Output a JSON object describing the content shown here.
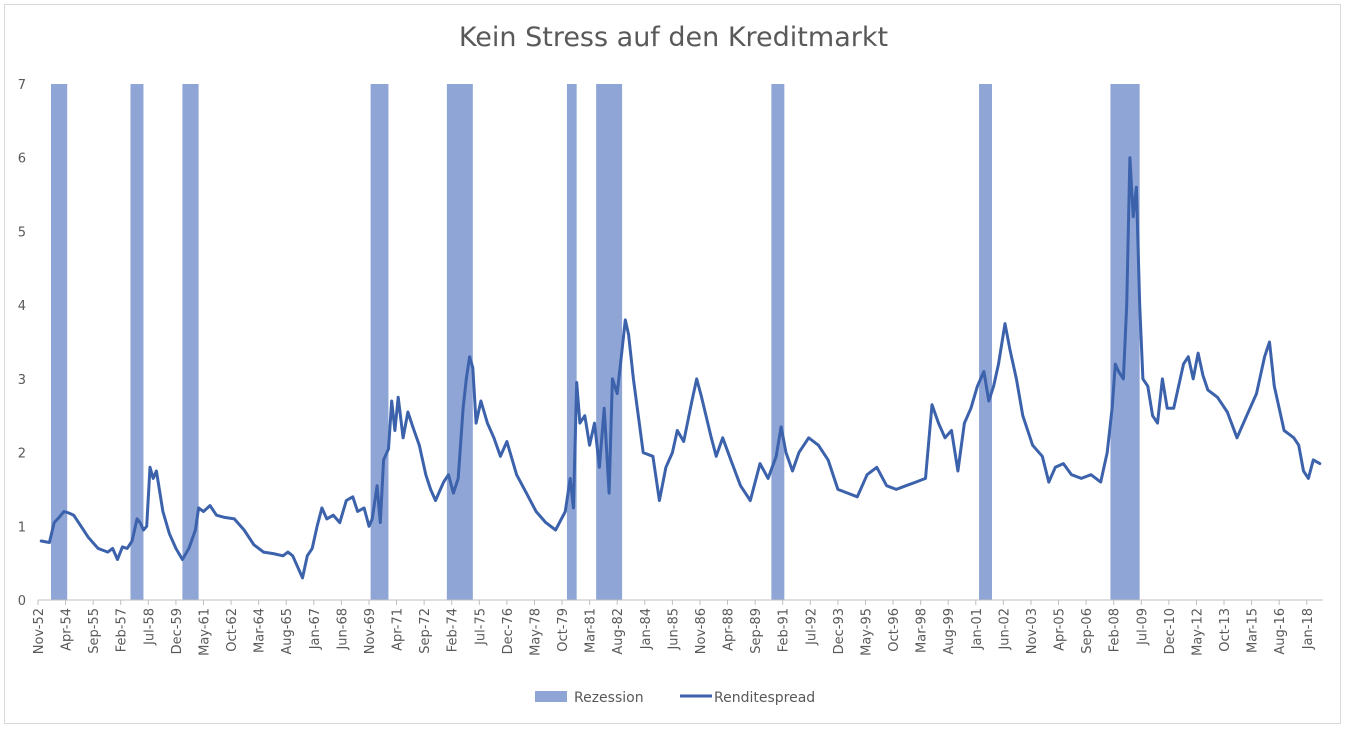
{
  "chart_data": {
    "type": "line",
    "title": "Kein Stress auf den Kreditmarkt",
    "xlabel": "",
    "ylabel": "",
    "ylim": [
      0,
      7
    ],
    "yticks": [
      0,
      1,
      2,
      3,
      4,
      5,
      6,
      7
    ],
    "xlim": [
      "Nov-52",
      "Nov-18"
    ],
    "xticks": [
      "Nov-52",
      "Apr-54",
      "Sep-55",
      "Feb-57",
      "Jul-58",
      "Dec-59",
      "May-61",
      "Oct-62",
      "Mar-64",
      "Aug-65",
      "Jan-67",
      "Jun-68",
      "Nov-69",
      "Apr-71",
      "Sep-72",
      "Feb-74",
      "Jul-75",
      "Dec-76",
      "May-78",
      "Oct-79",
      "Mar-81",
      "Aug-82",
      "Jan-84",
      "Jun-85",
      "Nov-86",
      "Apr-88",
      "Sep-89",
      "Feb-91",
      "Jul-92",
      "Dec-93",
      "May-95",
      "Oct-96",
      "Mar-98",
      "Aug-99",
      "Jan-01",
      "Jun-02",
      "Nov-03",
      "Apr-05",
      "Sep-06",
      "Feb-08",
      "Jul-09",
      "Dec-10",
      "May-12",
      "Oct-13",
      "Mar-15",
      "Aug-16",
      "Jan-18"
    ],
    "grid": false,
    "legend_position": "bottom",
    "colors": {
      "recession": "#8fa5d6",
      "spread": "#3c62ac",
      "axis": "#bfbfbf",
      "text": "#595959"
    },
    "series": [
      {
        "name": "Rezession",
        "kind": "shaded-periods",
        "periods": [
          [
            "Jul-53",
            "May-54"
          ],
          [
            "Aug-57",
            "Apr-58"
          ],
          [
            "Apr-60",
            "Feb-61"
          ],
          [
            "Dec-69",
            "Nov-70"
          ],
          [
            "Nov-73",
            "Mar-75"
          ],
          [
            "Jan-80",
            "Jul-80"
          ],
          [
            "Jul-81",
            "Nov-82"
          ],
          [
            "Jul-90",
            "Mar-91"
          ],
          [
            "Mar-01",
            "Nov-01"
          ],
          [
            "Dec-07",
            "Jun-09"
          ]
        ]
      },
      {
        "name": "Renditespread",
        "kind": "line",
        "points": [
          [
            "Jan-53",
            0.8
          ],
          [
            "Jun-53",
            0.78
          ],
          [
            "Sep-53",
            1.05
          ],
          [
            "Dec-53",
            1.12
          ],
          [
            "Mar-54",
            1.2
          ],
          [
            "Jun-54",
            1.18
          ],
          [
            "Sep-54",
            1.15
          ],
          [
            "Dec-54",
            1.05
          ],
          [
            "Jun-55",
            0.85
          ],
          [
            "Dec-55",
            0.7
          ],
          [
            "Jun-56",
            0.65
          ],
          [
            "Sep-56",
            0.7
          ],
          [
            "Dec-56",
            0.55
          ],
          [
            "Mar-57",
            0.72
          ],
          [
            "Jun-57",
            0.7
          ],
          [
            "Sep-57",
            0.8
          ],
          [
            "Dec-57",
            1.1
          ],
          [
            "Feb-58",
            1.05
          ],
          [
            "Apr-58",
            0.95
          ],
          [
            "Jun-58",
            1.0
          ],
          [
            "Aug-58",
            1.8
          ],
          [
            "Oct-58",
            1.65
          ],
          [
            "Dec-58",
            1.75
          ],
          [
            "Apr-59",
            1.2
          ],
          [
            "Aug-59",
            0.9
          ],
          [
            "Dec-59",
            0.7
          ],
          [
            "Apr-60",
            0.55
          ],
          [
            "Aug-60",
            0.7
          ],
          [
            "Dec-60",
            0.95
          ],
          [
            "Feb-61",
            1.25
          ],
          [
            "May-61",
            1.2
          ],
          [
            "Sep-61",
            1.28
          ],
          [
            "Jan-62",
            1.15
          ],
          [
            "Jun-62",
            1.12
          ],
          [
            "Dec-62",
            1.1
          ],
          [
            "Jun-63",
            0.95
          ],
          [
            "Dec-63",
            0.75
          ],
          [
            "Jun-64",
            0.65
          ],
          [
            "Dec-64",
            0.63
          ],
          [
            "Jun-65",
            0.6
          ],
          [
            "Sep-65",
            0.65
          ],
          [
            "Dec-65",
            0.6
          ],
          [
            "Mar-66",
            0.45
          ],
          [
            "Jun-66",
            0.3
          ],
          [
            "Sep-66",
            0.6
          ],
          [
            "Dec-66",
            0.7
          ],
          [
            "Mar-67",
            1.0
          ],
          [
            "Jun-67",
            1.25
          ],
          [
            "Sep-67",
            1.1
          ],
          [
            "Jan-68",
            1.15
          ],
          [
            "May-68",
            1.05
          ],
          [
            "Sep-68",
            1.35
          ],
          [
            "Jan-69",
            1.4
          ],
          [
            "Apr-69",
            1.2
          ],
          [
            "Aug-69",
            1.25
          ],
          [
            "Nov-69",
            1.0
          ],
          [
            "Jan-70",
            1.1
          ],
          [
            "Apr-70",
            1.55
          ],
          [
            "Jun-70",
            1.05
          ],
          [
            "Aug-70",
            1.9
          ],
          [
            "Nov-70",
            2.05
          ],
          [
            "Jan-71",
            2.7
          ],
          [
            "Mar-71",
            2.3
          ],
          [
            "May-71",
            2.75
          ],
          [
            "Aug-71",
            2.2
          ],
          [
            "Nov-71",
            2.55
          ],
          [
            "Feb-72",
            2.35
          ],
          [
            "Jun-72",
            2.1
          ],
          [
            "Oct-72",
            1.7
          ],
          [
            "Jan-73",
            1.5
          ],
          [
            "Apr-73",
            1.35
          ],
          [
            "Sep-73",
            1.6
          ],
          [
            "Dec-73",
            1.7
          ],
          [
            "Mar-74",
            1.45
          ],
          [
            "Jun-74",
            1.65
          ],
          [
            "Sep-74",
            2.6
          ],
          [
            "Nov-74",
            3.0
          ],
          [
            "Jan-75",
            3.3
          ],
          [
            "Mar-75",
            3.15
          ],
          [
            "May-75",
            2.4
          ],
          [
            "Aug-75",
            2.7
          ],
          [
            "Dec-75",
            2.4
          ],
          [
            "Apr-76",
            2.2
          ],
          [
            "Aug-76",
            1.95
          ],
          [
            "Dec-76",
            2.15
          ],
          [
            "Jun-77",
            1.7
          ],
          [
            "Dec-77",
            1.45
          ],
          [
            "Jun-78",
            1.2
          ],
          [
            "Dec-78",
            1.05
          ],
          [
            "Jun-79",
            0.95
          ],
          [
            "Dec-79",
            1.2
          ],
          [
            "Mar-80",
            1.65
          ],
          [
            "May-80",
            1.25
          ],
          [
            "Jul-80",
            2.95
          ],
          [
            "Sep-80",
            2.4
          ],
          [
            "Dec-80",
            2.5
          ],
          [
            "Mar-81",
            2.1
          ],
          [
            "Jun-81",
            2.4
          ],
          [
            "Sep-81",
            1.8
          ],
          [
            "Dec-81",
            2.6
          ],
          [
            "Mar-82",
            1.45
          ],
          [
            "May-82",
            3.0
          ],
          [
            "Aug-82",
            2.8
          ],
          [
            "Oct-82",
            3.2
          ],
          [
            "Jan-83",
            3.8
          ],
          [
            "Mar-83",
            3.6
          ],
          [
            "Jun-83",
            3.0
          ],
          [
            "Dec-83",
            2.0
          ],
          [
            "Jun-84",
            1.95
          ],
          [
            "Oct-84",
            1.35
          ],
          [
            "Feb-85",
            1.8
          ],
          [
            "Jun-85",
            2.0
          ],
          [
            "Sep-85",
            2.3
          ],
          [
            "Jan-86",
            2.15
          ],
          [
            "Jun-86",
            2.7
          ],
          [
            "Sep-86",
            3.0
          ],
          [
            "Dec-86",
            2.75
          ],
          [
            "Jun-87",
            2.2
          ],
          [
            "Sep-87",
            1.95
          ],
          [
            "Jan-88",
            2.2
          ],
          [
            "Jun-88",
            1.9
          ],
          [
            "Dec-88",
            1.55
          ],
          [
            "Jun-89",
            1.35
          ],
          [
            "Dec-89",
            1.85
          ],
          [
            "May-90",
            1.65
          ],
          [
            "Oct-90",
            1.95
          ],
          [
            "Jan-91",
            2.35
          ],
          [
            "Apr-91",
            2.0
          ],
          [
            "Aug-91",
            1.75
          ],
          [
            "Dec-91",
            2.0
          ],
          [
            "Jun-92",
            2.2
          ],
          [
            "Dec-92",
            2.1
          ],
          [
            "Jun-93",
            1.9
          ],
          [
            "Dec-93",
            1.5
          ],
          [
            "Jun-94",
            1.45
          ],
          [
            "Dec-94",
            1.4
          ],
          [
            "Jun-95",
            1.7
          ],
          [
            "Dec-95",
            1.8
          ],
          [
            "Jun-96",
            1.55
          ],
          [
            "Dec-96",
            1.5
          ],
          [
            "Jun-97",
            1.55
          ],
          [
            "Dec-97",
            1.6
          ],
          [
            "Jun-98",
            1.65
          ],
          [
            "Oct-98",
            2.65
          ],
          [
            "Feb-99",
            2.4
          ],
          [
            "Jun-99",
            2.2
          ],
          [
            "Oct-99",
            2.3
          ],
          [
            "Feb-00",
            1.75
          ],
          [
            "Jun-00",
            2.4
          ],
          [
            "Oct-00",
            2.6
          ],
          [
            "Feb-01",
            2.9
          ],
          [
            "Jun-01",
            3.1
          ],
          [
            "Sep-01",
            2.7
          ],
          [
            "Dec-01",
            2.9
          ],
          [
            "Mar-02",
            3.2
          ],
          [
            "Jul-02",
            3.75
          ],
          [
            "Oct-02",
            3.4
          ],
          [
            "Feb-03",
            3.0
          ],
          [
            "Jun-03",
            2.5
          ],
          [
            "Dec-03",
            2.1
          ],
          [
            "Jun-04",
            1.95
          ],
          [
            "Oct-04",
            1.6
          ],
          [
            "Feb-05",
            1.8
          ],
          [
            "Jul-05",
            1.85
          ],
          [
            "Dec-05",
            1.7
          ],
          [
            "Jun-06",
            1.65
          ],
          [
            "Dec-06",
            1.7
          ],
          [
            "Jun-07",
            1.6
          ],
          [
            "Oct-07",
            2.0
          ],
          [
            "Jan-08",
            2.6
          ],
          [
            "Mar-08",
            3.2
          ],
          [
            "May-08",
            3.1
          ],
          [
            "Aug-08",
            3.0
          ],
          [
            "Oct-08",
            4.0
          ],
          [
            "Dec-08",
            6.0
          ],
          [
            "Feb-09",
            5.2
          ],
          [
            "Apr-09",
            5.6
          ],
          [
            "Jun-09",
            4.0
          ],
          [
            "Aug-09",
            3.0
          ],
          [
            "Nov-09",
            2.9
          ],
          [
            "Feb-10",
            2.5
          ],
          [
            "May-10",
            2.4
          ],
          [
            "Aug-10",
            3.0
          ],
          [
            "Nov-10",
            2.6
          ],
          [
            "Mar-11",
            2.6
          ],
          [
            "Jun-11",
            2.9
          ],
          [
            "Sep-11",
            3.2
          ],
          [
            "Dec-11",
            3.3
          ],
          [
            "Mar-12",
            3.0
          ],
          [
            "Jun-12",
            3.35
          ],
          [
            "Sep-12",
            3.05
          ],
          [
            "Dec-12",
            2.85
          ],
          [
            "Jun-13",
            2.75
          ],
          [
            "Dec-13",
            2.55
          ],
          [
            "Jun-14",
            2.2
          ],
          [
            "Dec-14",
            2.5
          ],
          [
            "Jun-15",
            2.8
          ],
          [
            "Nov-15",
            3.3
          ],
          [
            "Feb-16",
            3.5
          ],
          [
            "May-16",
            2.9
          ],
          [
            "Aug-16",
            2.6
          ],
          [
            "Nov-16",
            2.3
          ],
          [
            "Feb-17",
            2.25
          ],
          [
            "May-17",
            2.2
          ],
          [
            "Aug-17",
            2.1
          ],
          [
            "Nov-17",
            1.75
          ],
          [
            "Feb-18",
            1.65
          ],
          [
            "May-18",
            1.9
          ],
          [
            "Sep-18",
            1.85
          ]
        ]
      }
    ]
  }
}
